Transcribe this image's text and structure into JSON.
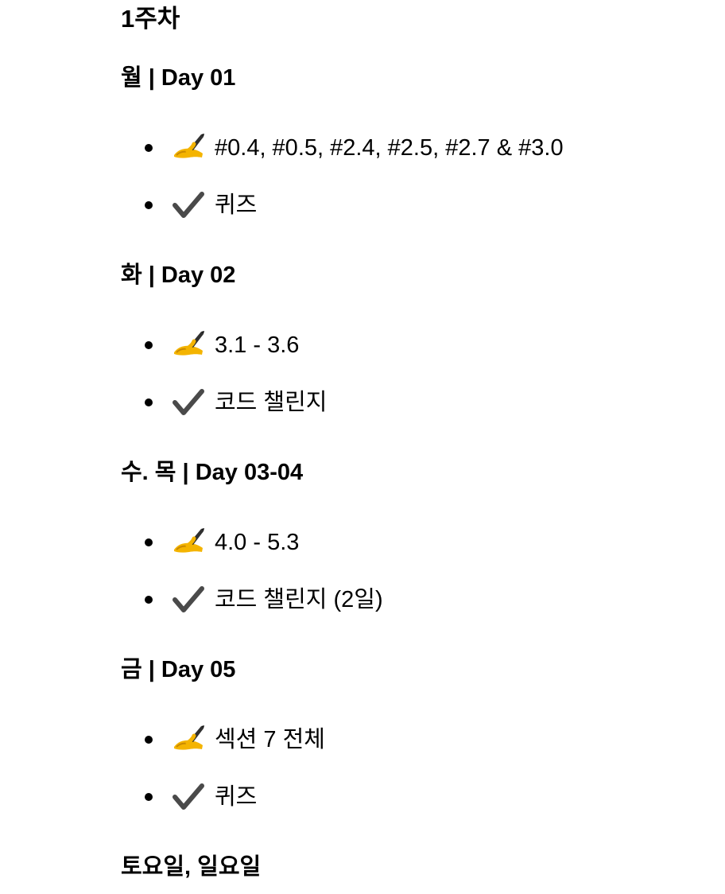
{
  "week": {
    "title": "1주차"
  },
  "icons": {
    "study": "writing-hand-icon",
    "check": "check-mark-icon",
    "study_color": "#F4B400",
    "check_color": "#4A4A4A"
  },
  "days": [
    {
      "title": "월 | Day 01",
      "tasks": [
        {
          "icon": "writing-hand-icon",
          "text": "#0.4, #0.5, #2.4, #2.5, #2.7 & #3.0"
        },
        {
          "icon": "check-mark-icon",
          "text": "퀴즈"
        }
      ]
    },
    {
      "title": "화 | Day 02",
      "tasks": [
        {
          "icon": "writing-hand-icon",
          "text": "3.1 - 3.6"
        },
        {
          "icon": "check-mark-icon",
          "text": "코드 챌린지"
        }
      ]
    },
    {
      "title": "수. 목 | Day 03-04",
      "tasks": [
        {
          "icon": "writing-hand-icon",
          "text": "4.0 - 5.3"
        },
        {
          "icon": "check-mark-icon",
          "text": "코드 챌린지 (2일)"
        }
      ]
    },
    {
      "title": "금 | Day 05",
      "tasks": [
        {
          "icon": "writing-hand-icon",
          "text": "섹션 7 전체"
        },
        {
          "icon": "check-mark-icon",
          "text": "퀴즈"
        }
      ]
    },
    {
      "title": "토요일, 일요일",
      "tasks": []
    }
  ]
}
